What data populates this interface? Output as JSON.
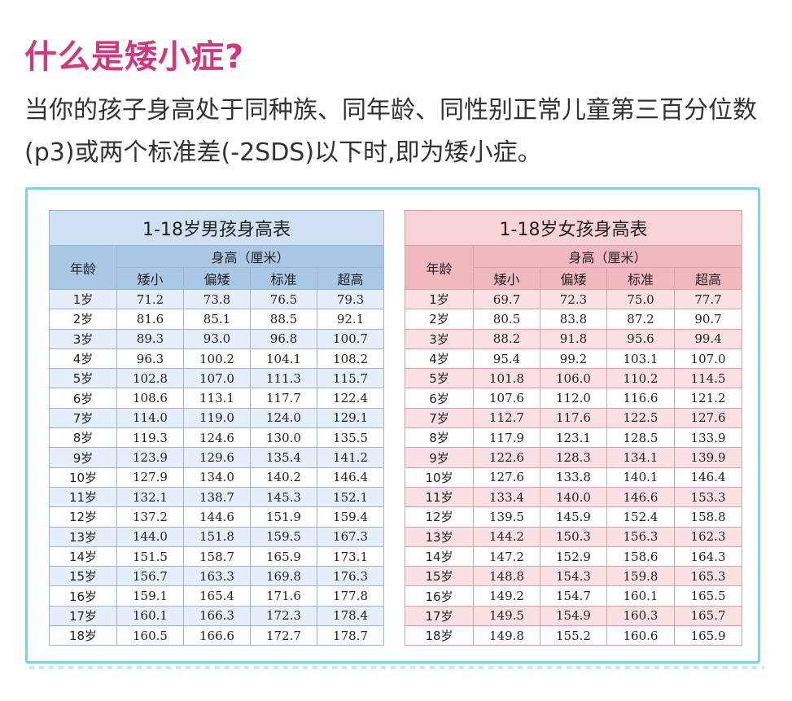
{
  "title": "什么是矮小症?",
  "intro": "当你的孩子身高处于同种族、同年龄、同性别正常儿童第三百分位数(p3)或两个标准差(-2SDS)以下时,即为矮小症。",
  "tables": {
    "boys": {
      "caption": "1-18岁男孩身高表",
      "age_header": "年龄",
      "height_header": "身高（厘米）",
      "columns": [
        "矮小",
        "偏矮",
        "标准",
        "超高"
      ],
      "rows": [
        [
          "1岁",
          "71.2",
          "73.8",
          "76.5",
          "79.3"
        ],
        [
          "2岁",
          "81.6",
          "85.1",
          "88.5",
          "92.1"
        ],
        [
          "3岁",
          "89.3",
          "93.0",
          "96.8",
          "100.7"
        ],
        [
          "4岁",
          "96.3",
          "100.2",
          "104.1",
          "108.2"
        ],
        [
          "5岁",
          "102.8",
          "107.0",
          "111.3",
          "115.7"
        ],
        [
          "6岁",
          "108.6",
          "113.1",
          "117.7",
          "122.4"
        ],
        [
          "7岁",
          "114.0",
          "119.0",
          "124.0",
          "129.1"
        ],
        [
          "8岁",
          "119.3",
          "124.6",
          "130.0",
          "135.5"
        ],
        [
          "9岁",
          "123.9",
          "129.6",
          "135.4",
          "141.2"
        ],
        [
          "10岁",
          "127.9",
          "134.0",
          "140.2",
          "146.4"
        ],
        [
          "11岁",
          "132.1",
          "138.7",
          "145.3",
          "152.1"
        ],
        [
          "12岁",
          "137.2",
          "144.6",
          "151.9",
          "159.4"
        ],
        [
          "13岁",
          "144.0",
          "151.8",
          "159.5",
          "167.3"
        ],
        [
          "14岁",
          "151.5",
          "158.7",
          "165.9",
          "173.1"
        ],
        [
          "15岁",
          "156.7",
          "163.3",
          "169.8",
          "176.3"
        ],
        [
          "16岁",
          "159.1",
          "165.4",
          "171.6",
          "177.8"
        ],
        [
          "17岁",
          "160.1",
          "166.3",
          "172.3",
          "178.4"
        ],
        [
          "18岁",
          "160.5",
          "166.6",
          "172.7",
          "178.7"
        ]
      ]
    },
    "girls": {
      "caption": "1-18岁女孩身高表",
      "age_header": "年龄",
      "height_header": "身高（厘米）",
      "columns": [
        "矮小",
        "偏矮",
        "标准",
        "超高"
      ],
      "rows": [
        [
          "1岁",
          "69.7",
          "72.3",
          "75.0",
          "77.7"
        ],
        [
          "2岁",
          "80.5",
          "83.8",
          "87.2",
          "90.7"
        ],
        [
          "3岁",
          "88.2",
          "91.8",
          "95.6",
          "99.4"
        ],
        [
          "4岁",
          "95.4",
          "99.2",
          "103.1",
          "107.0"
        ],
        [
          "5岁",
          "101.8",
          "106.0",
          "110.2",
          "114.5"
        ],
        [
          "6岁",
          "107.6",
          "112.0",
          "116.6",
          "121.2"
        ],
        [
          "7岁",
          "112.7",
          "117.6",
          "122.5",
          "127.6"
        ],
        [
          "8岁",
          "117.9",
          "123.1",
          "128.5",
          "133.9"
        ],
        [
          "9岁",
          "122.6",
          "128.3",
          "134.1",
          "139.9"
        ],
        [
          "10岁",
          "127.6",
          "133.8",
          "140.1",
          "146.4"
        ],
        [
          "11岁",
          "133.4",
          "140.0",
          "146.6",
          "153.3"
        ],
        [
          "12岁",
          "139.5",
          "145.9",
          "152.4",
          "158.8"
        ],
        [
          "13岁",
          "144.2",
          "150.3",
          "156.3",
          "162.3"
        ],
        [
          "14岁",
          "147.2",
          "152.9",
          "158.6",
          "164.3"
        ],
        [
          "15岁",
          "148.8",
          "154.3",
          "159.8",
          "165.3"
        ],
        [
          "16岁",
          "149.2",
          "154.7",
          "160.1",
          "165.5"
        ],
        [
          "17岁",
          "149.5",
          "154.9",
          "160.3",
          "165.7"
        ],
        [
          "18岁",
          "149.8",
          "155.2",
          "160.6",
          "165.9"
        ]
      ]
    }
  }
}
